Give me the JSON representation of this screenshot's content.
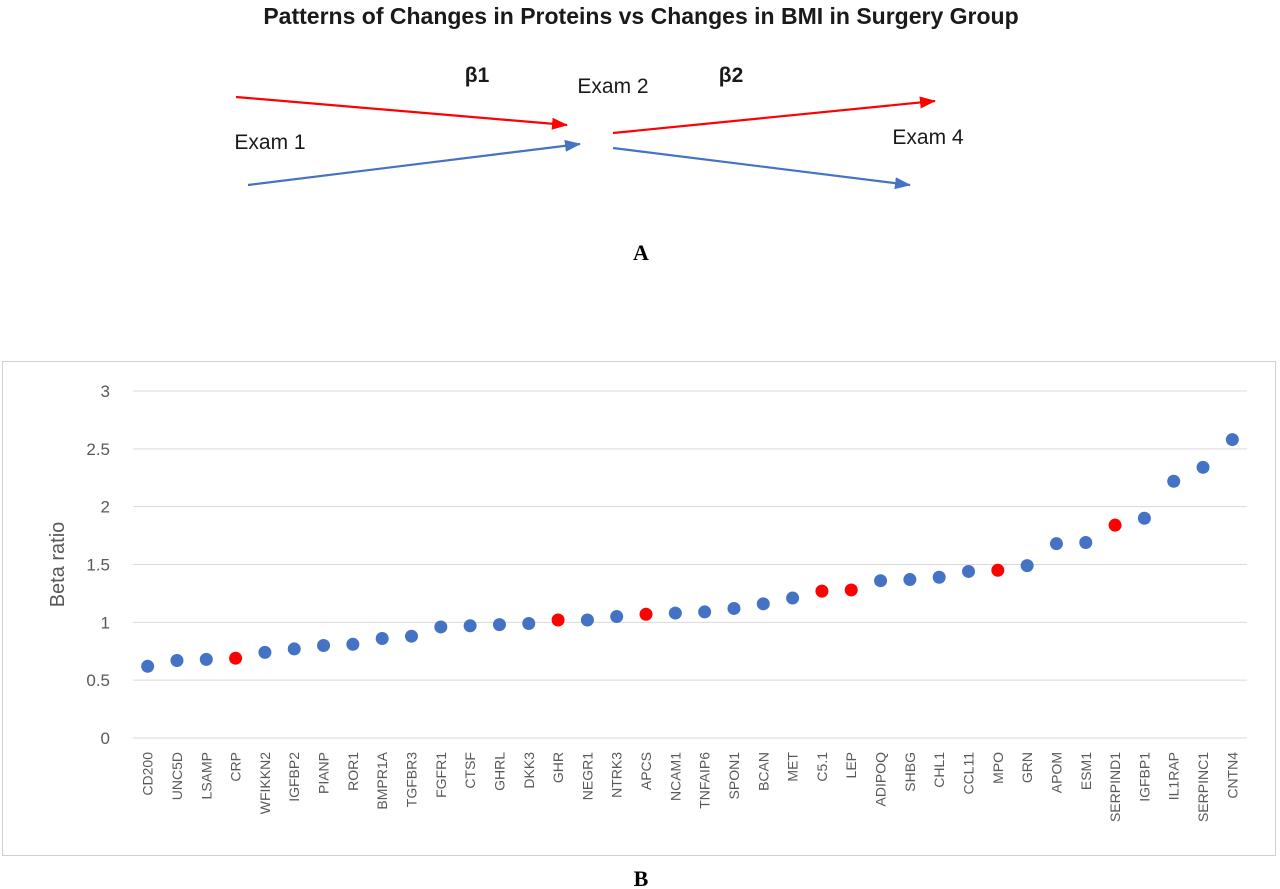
{
  "panel_a": {
    "title": "Patterns of Changes in Proteins vs Changes in BMI in Surgery Group",
    "beta1": "β1",
    "beta2": "β2",
    "exam1": "Exam 1",
    "exam2": "Exam 2",
    "exam4": "Exam 4",
    "letter": "A",
    "colors": {
      "red": "#ff0000",
      "blue": "#4472c4"
    }
  },
  "panel_b": {
    "letter": "B"
  },
  "chart_data": {
    "type": "scatter",
    "categories": [
      "CD200",
      "UNC5D",
      "LSAMP",
      "CRP",
      "WFIKKN2",
      "IGFBP2",
      "PIANP",
      "ROR1",
      "BMPR1A",
      "TGFBR3",
      "FGFR1",
      "CTSF",
      "GHRL",
      "DKK3",
      "GHR",
      "NEGR1",
      "NTRK3",
      "APCS",
      "NCAM1",
      "TNFAIP6",
      "SPON1",
      "BCAN",
      "MET",
      "C5.1",
      "LEP",
      "ADIPOQ",
      "SHBG",
      "CHL1",
      "CCL11",
      "MPO",
      "GRN",
      "APOM",
      "ESM1",
      "SERPIND1",
      "IGFBP1",
      "IL1RAP",
      "SERPINC1",
      "CNTN4"
    ],
    "values": [
      0.62,
      0.67,
      0.68,
      0.69,
      0.74,
      0.77,
      0.8,
      0.81,
      0.86,
      0.88,
      0.96,
      0.97,
      0.98,
      0.99,
      1.02,
      1.02,
      1.05,
      1.07,
      1.08,
      1.09,
      1.12,
      1.16,
      1.21,
      1.27,
      1.28,
      1.36,
      1.37,
      1.39,
      1.44,
      1.45,
      1.49,
      1.68,
      1.69,
      1.84,
      1.9,
      2.22,
      2.34,
      2.58
    ],
    "highlighted": [
      "CRP",
      "GHR",
      "APCS",
      "C5.1",
      "LEP",
      "MPO",
      "SERPIND1"
    ],
    "colors": {
      "default": "#4472c4",
      "highlight": "#ff0000"
    },
    "title": "",
    "xlabel": "",
    "ylabel": "Beta ratio",
    "ylim": [
      0,
      3
    ],
    "yticks": [
      0,
      0.5,
      1,
      1.5,
      2,
      2.5,
      3
    ],
    "grid": true,
    "legend": "none"
  }
}
